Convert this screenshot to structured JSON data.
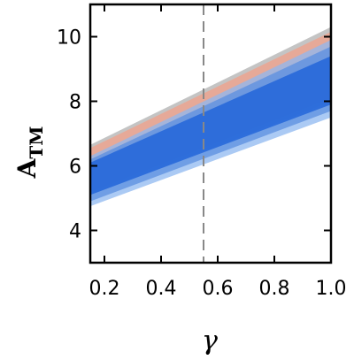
{
  "chart_data": {
    "type": "band",
    "xlabel": "γ",
    "ylabel": "A",
    "ylabel_subscript": "TM",
    "x": [
      0.15,
      1.0
    ],
    "series": [
      {
        "color": "#b0b0b0",
        "lower": [
          5.1,
          8.0
        ],
        "upper": [
          6.65,
          10.3
        ]
      },
      {
        "color": "#f2a08a",
        "lower": [
          5.2,
          8.1
        ],
        "upper": [
          6.55,
          10.15
        ]
      },
      {
        "color": "#8fb8f0",
        "lower": [
          4.75,
          7.5
        ],
        "upper": [
          6.3,
          9.9
        ]
      },
      {
        "color": "#5b8fe0",
        "lower": [
          4.9,
          7.7
        ],
        "upper": [
          6.2,
          9.7
        ]
      },
      {
        "color": "#1a5fd8",
        "lower": [
          5.1,
          7.9
        ],
        "upper": [
          6.1,
          9.4
        ]
      }
    ],
    "vline": 0.55,
    "xlim": [
      0.15,
      1.0
    ],
    "ylim": [
      3,
      11
    ],
    "xticks": [
      0.2,
      0.4,
      0.6,
      0.8,
      {
        "value": 1.0,
        "label": "1.0"
      }
    ],
    "yticks": [
      4,
      6,
      8,
      10
    ]
  }
}
